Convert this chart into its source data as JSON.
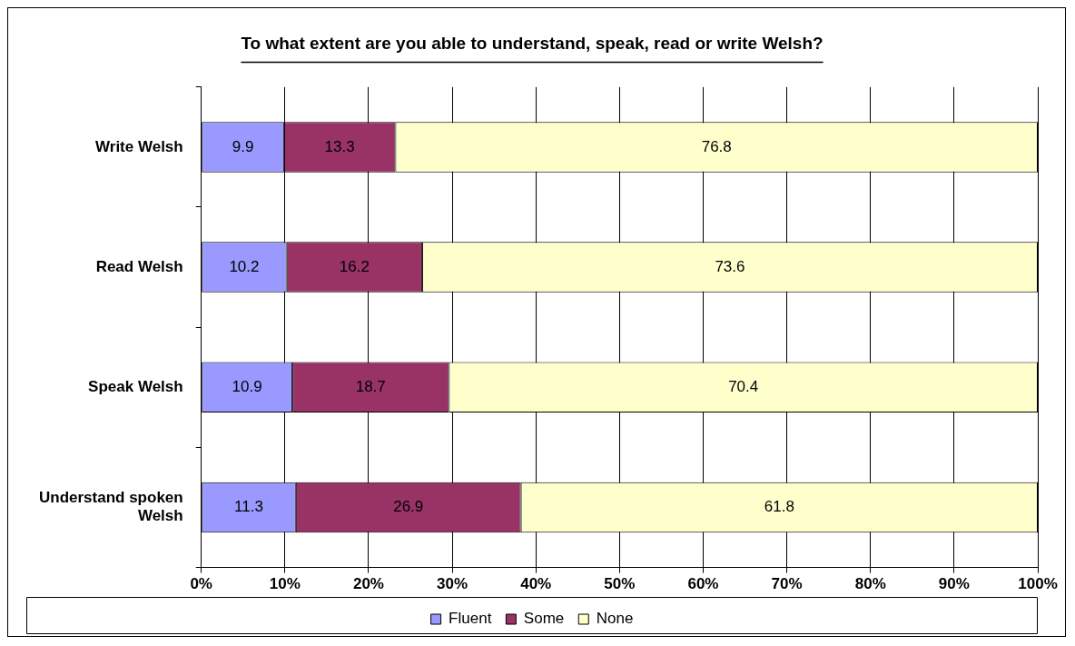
{
  "chart_data": {
    "type": "bar",
    "orientation": "horizontal",
    "stacked": true,
    "title": "To what extent are you able to understand, speak, read or write Welsh?",
    "categories": [
      "Write Welsh",
      "Read Welsh",
      "Speak Welsh",
      "Understand spoken Welsh"
    ],
    "series": [
      {
        "name": "Fluent",
        "color": "#9999ff",
        "values": [
          9.9,
          10.2,
          10.9,
          11.3
        ]
      },
      {
        "name": "Some",
        "color": "#993366",
        "values": [
          13.3,
          16.2,
          18.7,
          26.9
        ]
      },
      {
        "name": "None",
        "color": "#ffffcc",
        "values": [
          76.8,
          73.6,
          70.4,
          61.8
        ]
      }
    ],
    "xlim": [
      0,
      100
    ],
    "xticks": [
      {
        "value": 0,
        "label": "0%"
      },
      {
        "value": 10,
        "label": "10%"
      },
      {
        "value": 20,
        "label": "20%"
      },
      {
        "value": 30,
        "label": "30%"
      },
      {
        "value": 40,
        "label": "40%"
      },
      {
        "value": 50,
        "label": "50%"
      },
      {
        "value": 60,
        "label": "60%"
      },
      {
        "value": 70,
        "label": "70%"
      },
      {
        "value": 80,
        "label": "80%"
      },
      {
        "value": 90,
        "label": "90%"
      },
      {
        "value": 100,
        "label": "100%"
      }
    ],
    "grid": "x",
    "legend": "bottom",
    "data_labels": true
  }
}
